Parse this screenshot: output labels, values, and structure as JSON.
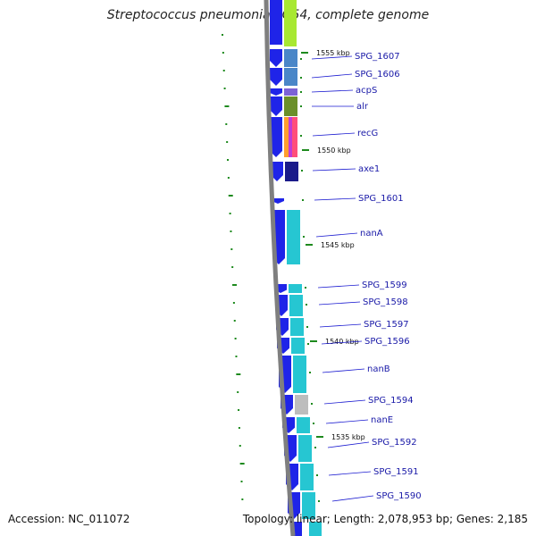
{
  "title": "Streptococcus pneumoniae G54, complete genome",
  "footer": {
    "accession": "Accession: NC_011072",
    "summary": "Topology: linear; Length: 2,078,953 bp; Genes: 2,185"
  },
  "colors": {
    "backbone": "#7f7f7f",
    "cds_arrow": "#1f24e8",
    "label_text": "#1a1aa8",
    "leader_line": "#1a1ad0",
    "tick": "#1e8a1e"
  },
  "scale_labels": [
    {
      "kbp": 1555,
      "text": "1555 kbp"
    },
    {
      "kbp": 1550,
      "text": "1550 kbp"
    },
    {
      "kbp": 1545,
      "text": "1545 kbp"
    },
    {
      "kbp": 1540,
      "text": "1540 kbp"
    },
    {
      "kbp": 1535,
      "text": "1535 kbp"
    }
  ],
  "genes": [
    {
      "name": "SPG_1607",
      "fill": "#4a86c8"
    },
    {
      "name": "SPG_1606",
      "fill": "#4a86c8"
    },
    {
      "name": "acpS",
      "fill": "#7d62d6"
    },
    {
      "name": "alr",
      "fill": "#6b8f2a"
    },
    {
      "name": "recG",
      "fill": "#ff4f7a"
    },
    {
      "name": "axe1",
      "fill": "#1a1a8a"
    },
    {
      "name": "SPG_1601",
      "fill": "#ffffff"
    },
    {
      "name": "nanA",
      "fill": "#26c6d2"
    },
    {
      "name": "SPG_1599",
      "fill": "#26c6d2"
    },
    {
      "name": "SPG_1598",
      "fill": "#26c6d2"
    },
    {
      "name": "SPG_1597",
      "fill": "#26c6d2"
    },
    {
      "name": "SPG_1596",
      "fill": "#26c6d2"
    },
    {
      "name": "nanB",
      "fill": "#26c6d2"
    },
    {
      "name": "SPG_1594",
      "fill": "#bdbdbd"
    },
    {
      "name": "nanE",
      "fill": "#26c6d2"
    },
    {
      "name": "SPG_1592",
      "fill": "#26c6d2"
    },
    {
      "name": "SPG_1591",
      "fill": "#26c6d2"
    },
    {
      "name": "SPG_1590",
      "fill": "#26c6d2"
    }
  ]
}
